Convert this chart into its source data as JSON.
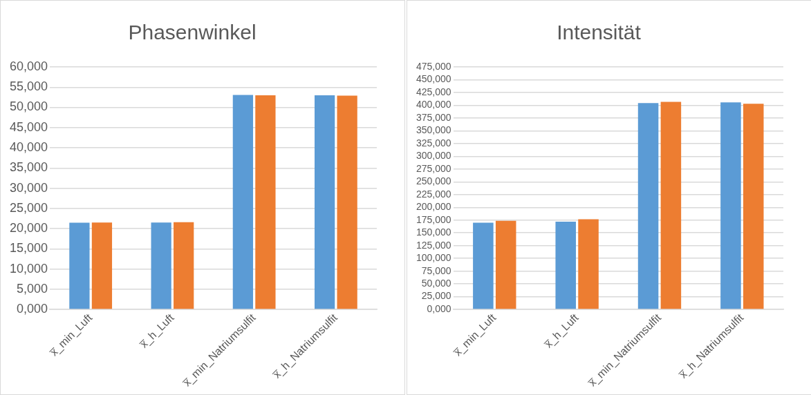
{
  "chart_data": [
    {
      "type": "bar",
      "title": "Phasenwinkel",
      "categories": [
        "x̅_min_Luft",
        "x̅_h_Luft",
        "x̅_min_Natriumsulfit",
        "x̅_h_Natriumsulfit"
      ],
      "series": [
        {
          "color": "#5b9bd5",
          "values": [
            21.45,
            21.5,
            53.1,
            53.0
          ]
        },
        {
          "color": "#ed7d31",
          "values": [
            21.5,
            21.6,
            53.0,
            52.9
          ]
        }
      ],
      "ylim": [
        0,
        60
      ],
      "yticks": [
        {
          "value": 0,
          "label": "0,000"
        },
        {
          "value": 5,
          "label": "5,000"
        },
        {
          "value": 10,
          "label": "10,000"
        },
        {
          "value": 15,
          "label": "15,000"
        },
        {
          "value": 20,
          "label": "20,000"
        },
        {
          "value": 25,
          "label": "25,000"
        },
        {
          "value": 30,
          "label": "30,000"
        },
        {
          "value": 35,
          "label": "35,000"
        },
        {
          "value": 40,
          "label": "40,000"
        },
        {
          "value": 45,
          "label": "45,000"
        },
        {
          "value": 50,
          "label": "50,000"
        },
        {
          "value": 55,
          "label": "55,000"
        },
        {
          "value": 60,
          "label": "60,000"
        }
      ],
      "grid": "y",
      "legend": false
    },
    {
      "type": "bar",
      "title": "Intensität",
      "categories": [
        "x̅_min_Luft",
        "x̅_h_Luft",
        "x̅_min_Natriumsulfit",
        "x̅_h_Natriumsulfit"
      ],
      "series": [
        {
          "color": "#5b9bd5",
          "values": [
            170,
            171.8,
            404.4,
            405.5
          ]
        },
        {
          "color": "#ed7d31",
          "values": [
            173.7,
            176.7,
            406.8,
            403
          ]
        }
      ],
      "ylim": [
        0,
        475
      ],
      "yticks": [
        {
          "value": 0,
          "label": "0,000"
        },
        {
          "value": 25,
          "label": "25,000"
        },
        {
          "value": 50,
          "label": "50,000"
        },
        {
          "value": 75,
          "label": "75,000"
        },
        {
          "value": 100,
          "label": "100,000"
        },
        {
          "value": 125,
          "label": "125,000"
        },
        {
          "value": 150,
          "label": "150,000"
        },
        {
          "value": 175,
          "label": "175,000"
        },
        {
          "value": 200,
          "label": "200,000"
        },
        {
          "value": 225,
          "label": "225,000"
        },
        {
          "value": 250,
          "label": "250,000"
        },
        {
          "value": 275,
          "label": "275,000"
        },
        {
          "value": 300,
          "label": "300,000"
        },
        {
          "value": 325,
          "label": "325,000"
        },
        {
          "value": 350,
          "label": "350,000"
        },
        {
          "value": 375,
          "label": "375,000"
        },
        {
          "value": 400,
          "label": "400,000"
        },
        {
          "value": 425,
          "label": "425,000"
        },
        {
          "value": 450,
          "label": "450,000"
        },
        {
          "value": 475,
          "label": "475,000"
        }
      ],
      "grid": "y",
      "legend": false
    }
  ]
}
